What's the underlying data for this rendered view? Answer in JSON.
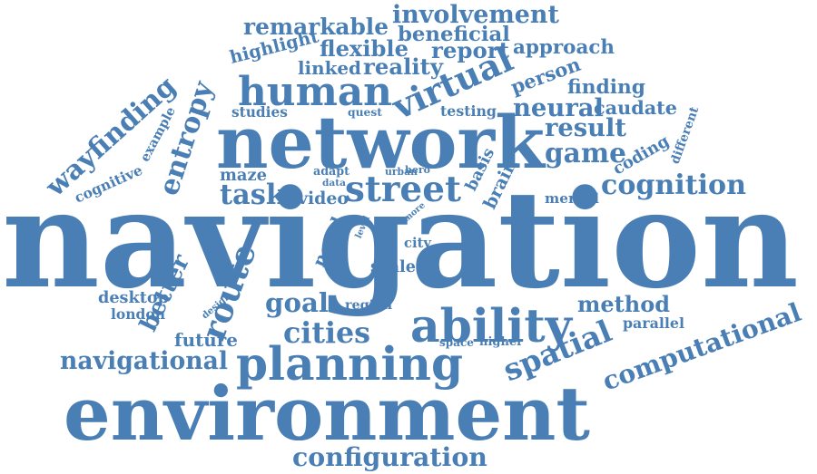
{
  "color": "#4a7fb5",
  "words": [
    "navigation",
    "network",
    "environment",
    "planning",
    "ability",
    "human",
    "street",
    "virtual",
    "entropy",
    "wayfinding",
    "route",
    "spatial",
    "computational",
    "cognition",
    "game",
    "result",
    "neural",
    "configuration",
    "navigational",
    "involvement",
    "remarkable",
    "beneficial",
    "flexible",
    "reality",
    "linked",
    "highlight",
    "report",
    "approach",
    "person",
    "finding",
    "caudate",
    "coding",
    "different",
    "testing",
    "quest",
    "studies",
    "example",
    "cognitive",
    "maze",
    "adapt",
    "urban",
    "hero",
    "basis",
    "brain",
    "task",
    "video",
    "data",
    "mental",
    "novel",
    "level",
    "more",
    "city",
    "scale",
    "better",
    "desktop",
    "london",
    "design",
    "goal",
    "region",
    "method",
    "parallel",
    "cities",
    "future",
    "space",
    "higher"
  ]
}
